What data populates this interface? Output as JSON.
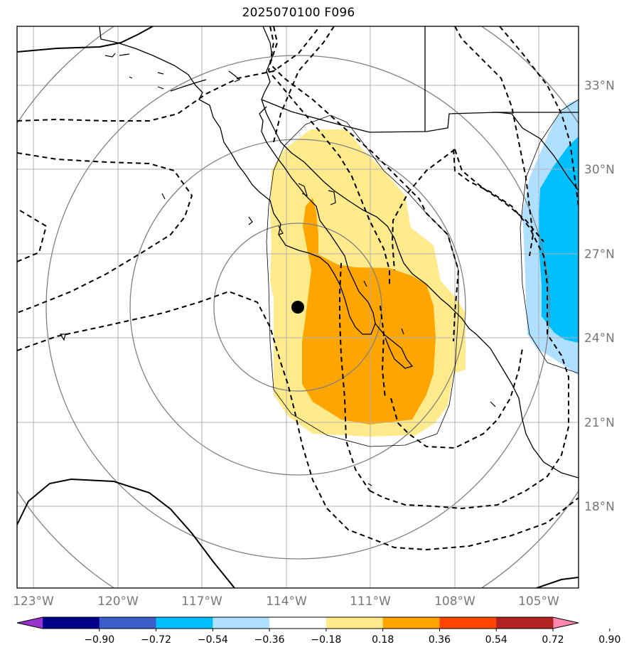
{
  "title": "2025070100 F096",
  "map": {
    "lon_range": [
      -123.5,
      -103.5
    ],
    "lat_range": [
      15,
      35
    ],
    "lon_ticks": [
      "123°W",
      "120°W",
      "117°W",
      "114°W",
      "111°W",
      "108°W",
      "105°W"
    ],
    "lat_ticks": [
      "33°N",
      "30°N",
      "27°N",
      "24°N",
      "21°N",
      "18°N"
    ],
    "center_marker": {
      "lon": -113.6,
      "lat": 24.9,
      "label": ""
    },
    "gridlines": true
  },
  "colorbar": {
    "tick_labels": [
      "−0.90",
      "−0.72",
      "−0.54",
      "−0.36",
      "−0.18",
      "0.18",
      "0.36",
      "0.54",
      "0.72",
      "0.90"
    ],
    "colors": [
      "#9932cc",
      "#00008b",
      "#3a5fcd",
      "#00bfff",
      "#b0e0ff",
      "#ffffff",
      "#ffeb8c",
      "#ffa500",
      "#ff4500",
      "#b22222",
      "#ff88b0"
    ],
    "extend": "both"
  }
}
